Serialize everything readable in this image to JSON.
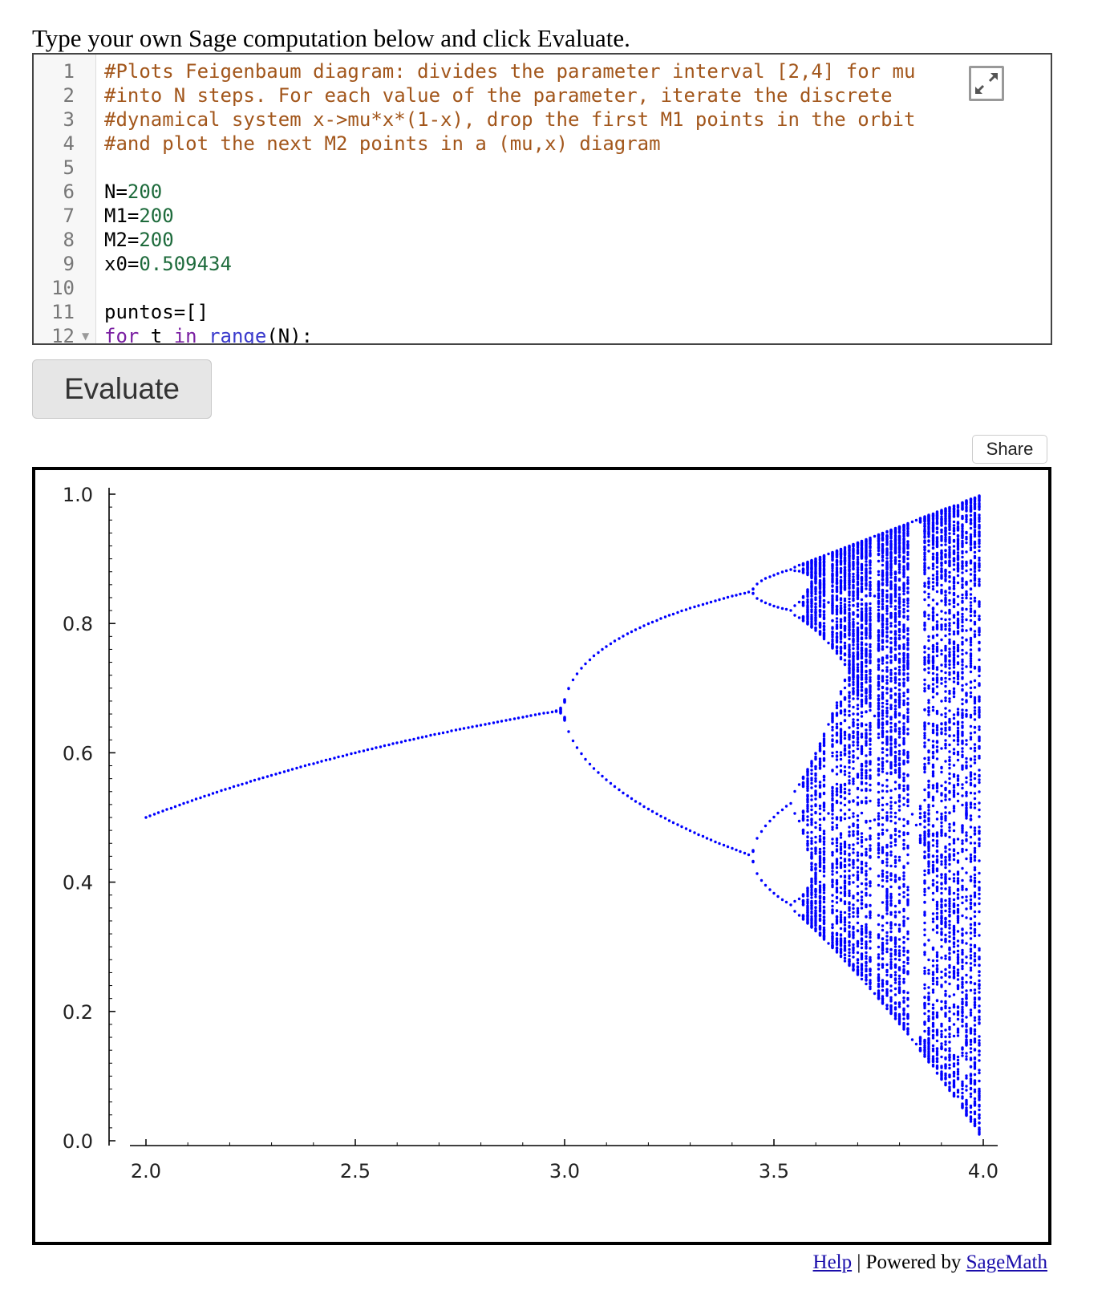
{
  "instructions": "Type your own Sage computation below and click Evaluate.",
  "editor": {
    "lines": [
      {
        "n": "1",
        "fold": "",
        "tokens": [
          {
            "t": "#Plots Feigenbaum diagram: divides the parameter interval [2,4] for mu",
            "c": "cm"
          }
        ]
      },
      {
        "n": "2",
        "fold": "",
        "tokens": [
          {
            "t": "#into N steps. For each value of the parameter, iterate the discrete",
            "c": "cm"
          }
        ]
      },
      {
        "n": "3",
        "fold": "",
        "tokens": [
          {
            "t": "#dynamical system x->mu*x*(1-x), drop the first M1 points in the orbit",
            "c": "cm"
          }
        ]
      },
      {
        "n": "4",
        "fold": "",
        "tokens": [
          {
            "t": "#and plot the next M2 points in a (mu,x) diagram",
            "c": "cm"
          }
        ]
      },
      {
        "n": "5",
        "fold": "",
        "tokens": []
      },
      {
        "n": "6",
        "fold": "",
        "tokens": [
          {
            "t": "N=",
            "c": "pl"
          },
          {
            "t": "200",
            "c": "num"
          }
        ]
      },
      {
        "n": "7",
        "fold": "",
        "tokens": [
          {
            "t": "M1=",
            "c": "pl"
          },
          {
            "t": "200",
            "c": "num"
          }
        ]
      },
      {
        "n": "8",
        "fold": "",
        "tokens": [
          {
            "t": "M2=",
            "c": "pl"
          },
          {
            "t": "200",
            "c": "num"
          }
        ]
      },
      {
        "n": "9",
        "fold": "",
        "tokens": [
          {
            "t": "x0=",
            "c": "pl"
          },
          {
            "t": "0.509434",
            "c": "num"
          }
        ]
      },
      {
        "n": "10",
        "fold": "",
        "tokens": []
      },
      {
        "n": "11",
        "fold": "",
        "tokens": [
          {
            "t": "puntos=[]",
            "c": "pl"
          }
        ]
      },
      {
        "n": "12",
        "fold": "▼",
        "tokens": [
          {
            "t": "for",
            "c": "kw"
          },
          {
            "t": " t ",
            "c": "pl"
          },
          {
            "t": "in",
            "c": "kw"
          },
          {
            "t": " ",
            "c": "pl"
          },
          {
            "t": "range",
            "c": "bi"
          },
          {
            "t": "(N):",
            "c": "pl"
          }
        ]
      }
    ],
    "expand_icon": "expand-arrows-icon"
  },
  "evaluate_label": "Evaluate",
  "share_label": "Share",
  "footer": {
    "help": "Help",
    "separator": " | Powered by ",
    "sagemath": "SageMath"
  },
  "colors": {
    "points": "#0000ff",
    "comment": "#a2561b",
    "number": "#1e6b3c",
    "keyword": "#7a1fa2",
    "builtin": "#3a3acc"
  },
  "chart_data": {
    "type": "scatter",
    "title": "",
    "xlabel": "",
    "ylabel": "",
    "xlim": [
      2.0,
      4.0
    ],
    "ylim": [
      0.0,
      1.0
    ],
    "x_ticks": [
      "2.0",
      "2.5",
      "3.0",
      "3.5",
      "4.0"
    ],
    "y_ticks": [
      "0.0",
      "0.2",
      "0.4",
      "0.6",
      "0.8",
      "1.0"
    ],
    "grid": false,
    "generator": {
      "map": "x -> mu*x*(1-x)",
      "mu_range": [
        2,
        4
      ],
      "N": 200,
      "M1": 200,
      "M2": 200,
      "x0": 0.509434
    }
  }
}
